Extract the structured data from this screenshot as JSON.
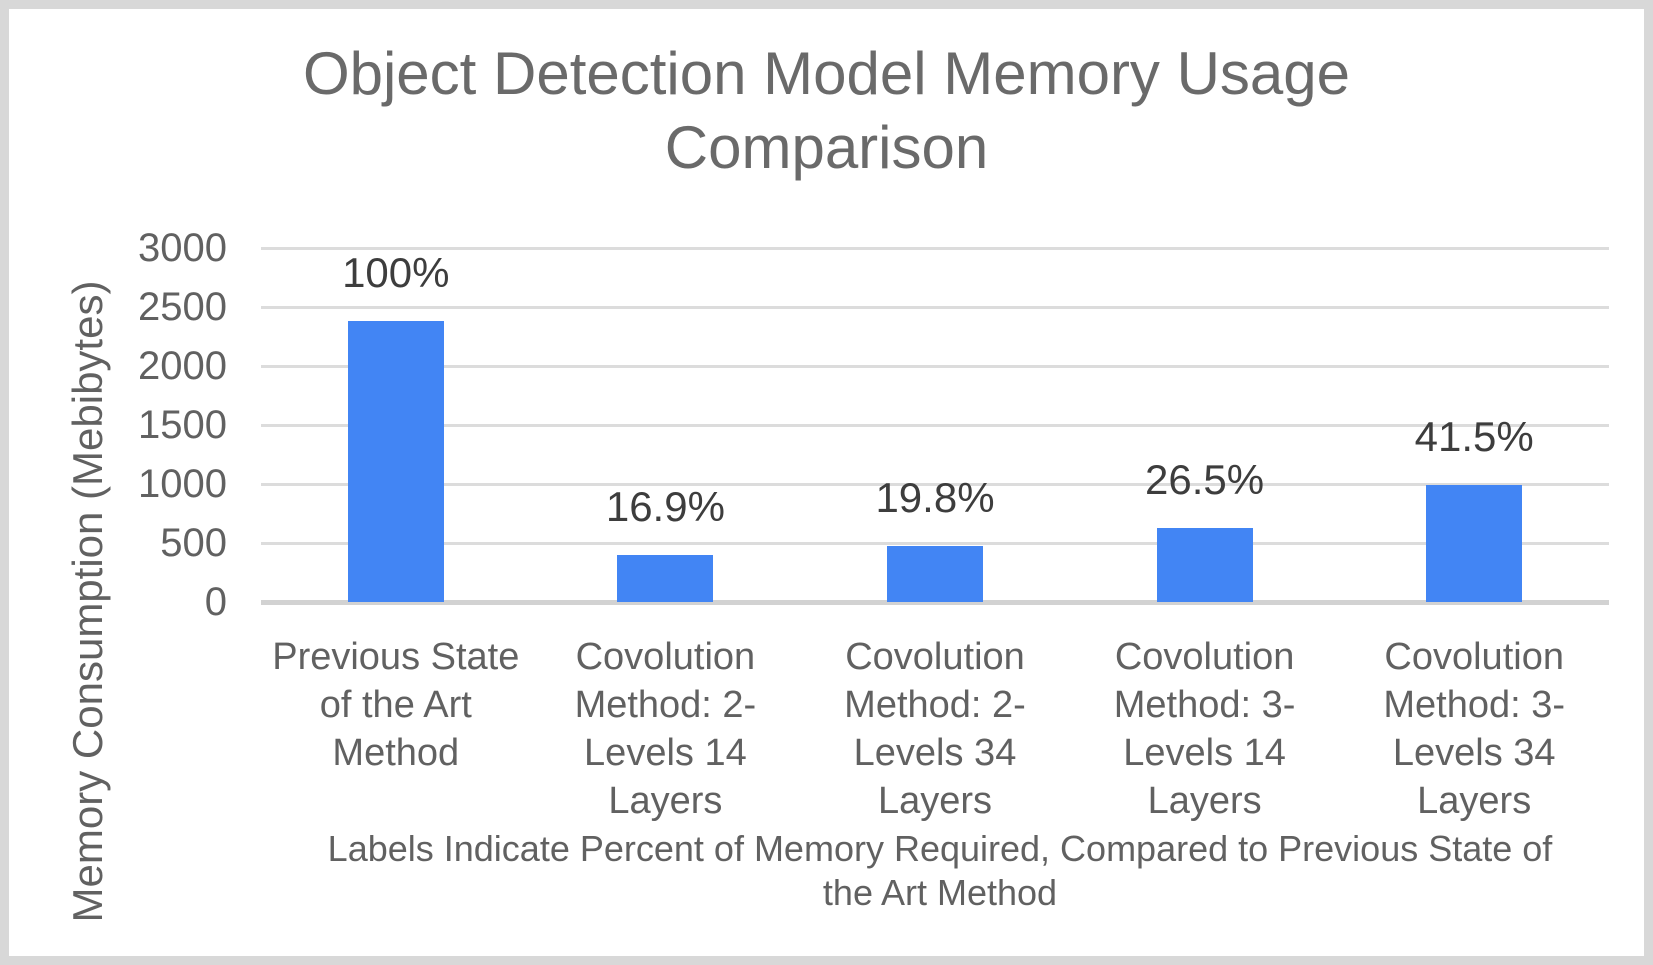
{
  "chart_data": {
    "type": "bar",
    "title": "Object Detection Model Memory Usage Comparison",
    "title_lines": [
      "Object Detection Model Memory Usage",
      "Comparison"
    ],
    "ylabel": "Memory Consumption (Mebibytes)",
    "xlabel": "",
    "ylim": [
      0,
      3000
    ],
    "yticks": [
      0,
      500,
      1000,
      1500,
      2000,
      2500,
      3000
    ],
    "grid": true,
    "legend": "none",
    "bar_color": "#4285f4",
    "categories": [
      "Previous State of the Art Method",
      "Covolution Method: 2-Levels 14 Layers",
      "Covolution Method: 2-Levels 34 Layers",
      "Covolution Method: 3-Levels 14 Layers",
      "Covolution Method: 3-Levels 34 Layers"
    ],
    "category_display_lines": [
      [
        "Previous State",
        "of the Art",
        "Method"
      ],
      [
        "Covolution",
        "Method: 2-",
        "Levels 14",
        "Layers"
      ],
      [
        "Covolution",
        "Method: 2-",
        "Levels 34",
        "Layers"
      ],
      [
        "Covolution",
        "Method: 3-",
        "Levels 14",
        "Layers"
      ],
      [
        "Covolution",
        "Method: 3-",
        "Levels 34",
        "Layers"
      ]
    ],
    "values_mebibytes": [
      2380,
      402,
      471,
      631,
      988
    ],
    "bar_labels": [
      "100%",
      "16.9%",
      "19.8%",
      "26.5%",
      "41.5%"
    ],
    "caption": "Labels Indicate Percent of Memory Required, Compared to Previous State of the Art Method",
    "caption_lines": [
      "Labels Indicate Percent of Memory Required, Compared to Previous State of",
      "the Art Method"
    ]
  }
}
